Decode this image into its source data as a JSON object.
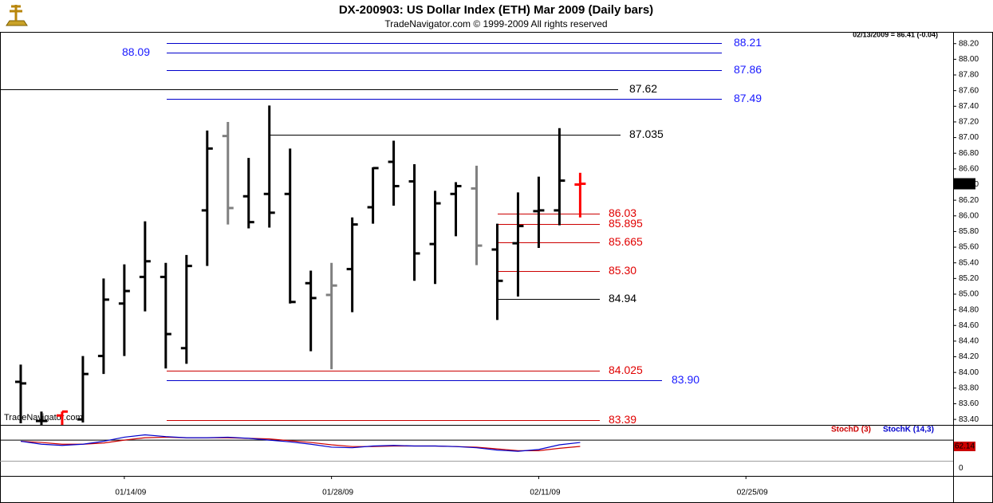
{
  "chart_data": [
    {
      "type": "ohlc",
      "title": "DX-200903:  US Dollar Index (ETH) Mar 2009  (Daily bars)",
      "subtitle": "TradeNavigator.com © 1999-2009 All rights reserved",
      "info": "02/13/2009 = 86.41 (-0.04)",
      "watermark": "TradeNavigator.com",
      "x": [
        "01/07/09",
        "01/08/09",
        "01/09/09",
        "01/12/09",
        "01/13/09",
        "01/14/09",
        "01/15/09",
        "01/16/09",
        "01/19/09",
        "01/20/09",
        "01/21/09",
        "01/22/09",
        "01/23/09",
        "01/26/09",
        "01/27/09",
        "01/28/09",
        "01/29/09",
        "01/30/09",
        "02/02/09",
        "02/03/09",
        "02/04/09",
        "02/05/09",
        "02/06/09",
        "02/09/09",
        "02/10/09",
        "02/11/09",
        "02/12/09",
        "02/13/09"
      ],
      "open": [
        83.88,
        83.38,
        83.45,
        83.4,
        84.21,
        84.88,
        85.22,
        85.22,
        84.31,
        86.07,
        87.02,
        86.25,
        86.28,
        86.28,
        85.14,
        84.99,
        85.32,
        86.11,
        86.69,
        86.44,
        85.64,
        86.28,
        86.35,
        85.57,
        85.65,
        86.06,
        86.07,
        86.4
      ],
      "high": [
        84.1,
        83.5,
        83.5,
        84.21,
        85.2,
        85.38,
        85.93,
        85.4,
        85.5,
        87.09,
        87.2,
        86.74,
        87.41,
        86.86,
        85.3,
        85.4,
        85.98,
        86.62,
        86.96,
        86.66,
        86.32,
        86.43,
        86.64,
        85.9,
        86.3,
        86.5,
        87.12,
        86.55
      ],
      "low": [
        83.35,
        83.33,
        83.33,
        83.36,
        83.98,
        84.21,
        84.78,
        84.05,
        84.11,
        85.36,
        85.89,
        85.84,
        85.85,
        84.88,
        84.27,
        84.04,
        84.77,
        85.9,
        86.13,
        85.17,
        85.13,
        85.74,
        85.37,
        84.67,
        84.97,
        85.59,
        85.88,
        85.98
      ],
      "close": [
        83.86,
        83.38,
        83.5,
        83.98,
        84.93,
        85.04,
        85.42,
        84.49,
        85.36,
        86.86,
        86.1,
        85.92,
        86.04,
        84.9,
        84.95,
        85.11,
        85.89,
        86.61,
        86.38,
        85.52,
        86.16,
        86.38,
        85.62,
        85.17,
        85.87,
        86.07,
        86.45,
        86.41
      ],
      "colors": [
        "#000000",
        "#000000",
        "#ff0000",
        "#000000",
        "#000000",
        "#000000",
        "#000000",
        "#000000",
        "#000000",
        "#000000",
        "#808080",
        "#000000",
        "#000000",
        "#000000",
        "#000000",
        "#808080",
        "#000000",
        "#000000",
        "#000000",
        "#000000",
        "#000000",
        "#000000",
        "#808080",
        "#000000",
        "#000000",
        "#000000",
        "#000000",
        "#ff0000"
      ],
      "xlim": [
        "01/06/09",
        "03/11/09"
      ],
      "xticks": [
        "01/14/09",
        "01/28/09",
        "02/11/09",
        "02/25/09"
      ],
      "ylim": [
        83.33,
        88.35
      ],
      "yticks": [
        {
          "value": 83.4,
          "label": "83.40"
        },
        {
          "value": 83.6,
          "label": "83.60"
        },
        {
          "value": 83.8,
          "label": "83.80"
        },
        {
          "value": 84.0,
          "label": "84.00"
        },
        {
          "value": 84.2,
          "label": "84.20"
        },
        {
          "value": 84.4,
          "label": "84.40"
        },
        {
          "value": 84.6,
          "label": "84.60"
        },
        {
          "value": 84.8,
          "label": "84.80"
        },
        {
          "value": 85.0,
          "label": "85.00"
        },
        {
          "value": 85.2,
          "label": "85.20"
        },
        {
          "value": 85.4,
          "label": "85.40"
        },
        {
          "value": 85.6,
          "label": "85.60"
        },
        {
          "value": 85.8,
          "label": "85.80"
        },
        {
          "value": 86.0,
          "label": "86.00"
        },
        {
          "value": 86.2,
          "label": "86.20"
        },
        {
          "value": 86.4,
          "label": "86.40"
        },
        {
          "value": 86.6,
          "label": "86.60"
        },
        {
          "value": 86.8,
          "label": "86.80"
        },
        {
          "value": 87.0,
          "label": "87.00"
        },
        {
          "value": 87.2,
          "label": "87.20"
        },
        {
          "value": 87.4,
          "label": "87.40"
        },
        {
          "value": 87.6,
          "label": "87.60"
        },
        {
          "value": 87.8,
          "label": "87.80"
        },
        {
          "value": 88.0,
          "label": "88.00"
        },
        {
          "value": 88.2,
          "label": "88.20"
        }
      ],
      "levels": [
        {
          "value": 88.21,
          "color": "#0000cc"
        },
        {
          "value": 88.09,
          "color": "#0000cc"
        },
        {
          "value": 87.86,
          "color": "#0000cc"
        },
        {
          "value": 87.62,
          "color": "#000000"
        },
        {
          "value": 87.49,
          "color": "#0000cc"
        },
        {
          "value": 87.035,
          "color": "#000000"
        },
        {
          "value": 86.03,
          "color": "#cc0000"
        },
        {
          "value": 85.895,
          "color": "#cc0000"
        },
        {
          "value": 85.665,
          "color": "#cc0000"
        },
        {
          "value": 85.3,
          "label": "85.30",
          "color": "#cc0000"
        },
        {
          "value": 84.94,
          "color": "#000000"
        },
        {
          "value": 84.025,
          "color": "#cc0000"
        },
        {
          "value": 83.9,
          "label": "83.90",
          "color": "#0000cc"
        },
        {
          "value": 83.39,
          "color": "#cc0000"
        }
      ]
    },
    {
      "type": "line",
      "series": [
        {
          "name": "StochD (3)",
          "color": "#cc0000",
          "values": [
            76.7,
            73.3,
            68.3,
            68.3,
            71.7,
            80,
            86.7,
            88.3,
            86.7,
            86.7,
            86.7,
            85,
            83.3,
            78.3,
            73.3,
            66.7,
            61.7,
            61.7,
            63.3,
            63.3,
            63.3,
            61.7,
            60,
            55,
            50,
            50,
            56.7,
            62.14
          ]
        },
        {
          "name": "StochK (14,3)",
          "color": "#0000cc",
          "values": [
            76.7,
            68.3,
            65,
            68.3,
            76.7,
            88.3,
            95,
            90,
            86.7,
            86.7,
            88.3,
            85,
            80,
            75,
            68.3,
            60,
            58.3,
            63.3,
            65,
            63.3,
            63.3,
            61.7,
            58.3,
            51.7,
            48.3,
            53.3,
            66.7,
            73.3
          ]
        }
      ],
      "ylim": [
        -21.7,
        123.3
      ],
      "yticks": [
        0
      ],
      "levels": [
        20,
        80
      ]
    }
  ]
}
